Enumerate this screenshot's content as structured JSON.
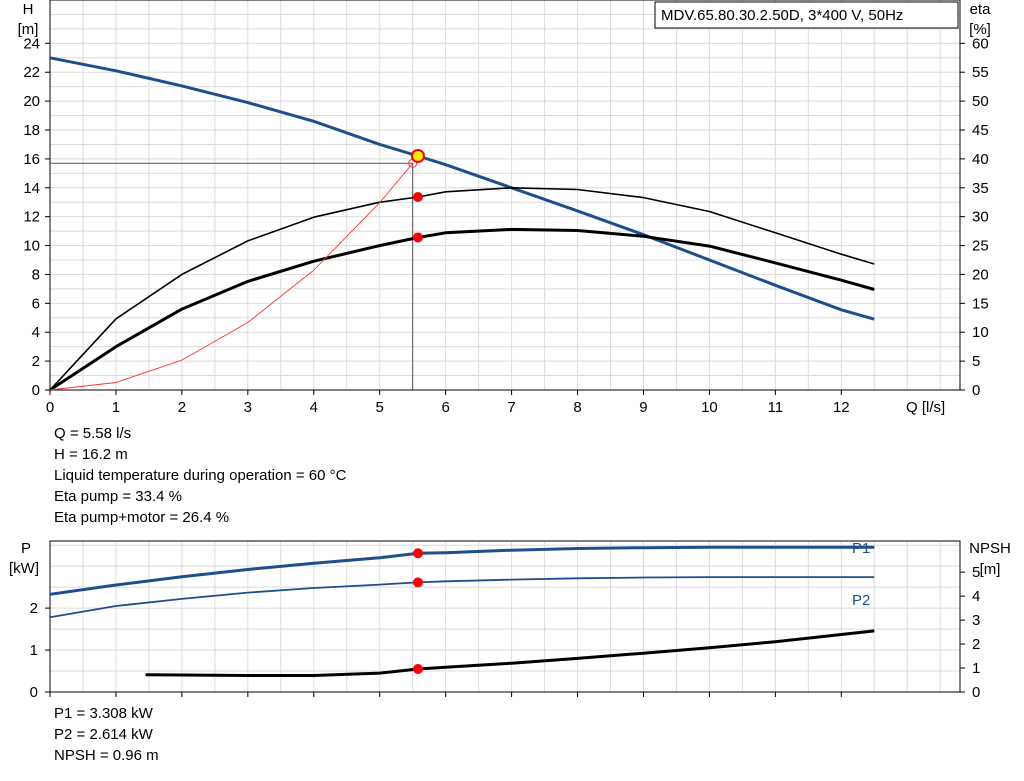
{
  "chart_data": [
    {
      "type": "line",
      "title": "MDV.65.80.30.2.50D, 3*400 V, 50Hz",
      "xlabel": "Q [l/s]",
      "ylabel_left": [
        "H",
        "[m]"
      ],
      "ylabel_right": [
        "eta",
        "[%]"
      ],
      "xlim": [
        0,
        13.8
      ],
      "ylim_left": [
        0,
        27
      ],
      "ylim_right": [
        0,
        67.5
      ],
      "x_ticks": [
        0,
        1,
        2,
        3,
        4,
        5,
        6,
        7,
        8,
        9,
        10,
        11,
        12
      ],
      "y_left_ticks": [
        0,
        2,
        4,
        6,
        8,
        10,
        12,
        14,
        16,
        18,
        20,
        22,
        24
      ],
      "y_right_ticks": [
        0,
        5,
        10,
        15,
        20,
        25,
        30,
        35,
        40,
        45,
        50,
        55,
        60
      ],
      "grid": true,
      "operating_point": {
        "q": 5.58,
        "h": 16.2,
        "eta_pump": 33.4,
        "eta_total": 26.4,
        "marker_q": 5.5,
        "marker_h": 15.7
      },
      "series": [
        {
          "role": "head",
          "axis": "left",
          "color": "#1f4e8c",
          "x": [
            0,
            1,
            2,
            3,
            4,
            5,
            5.58,
            6,
            7,
            8,
            9,
            10,
            11,
            12,
            12.5
          ],
          "y": [
            23.0,
            22.1,
            21.05,
            19.9,
            18.6,
            17.0,
            16.2,
            15.6,
            14.0,
            12.4,
            10.75,
            9.0,
            7.25,
            5.55,
            4.9
          ]
        },
        {
          "role": "eta-pump",
          "axis": "right",
          "color": "#000000",
          "x": [
            0,
            1,
            2,
            3,
            4,
            5,
            5.58,
            6,
            7,
            8,
            9,
            10,
            11,
            12,
            12.5
          ],
          "y": [
            0,
            12.3,
            20.0,
            25.8,
            29.9,
            32.5,
            33.4,
            34.3,
            35.0,
            34.7,
            33.3,
            30.9,
            27.2,
            23.5,
            21.8
          ]
        },
        {
          "role": "eta-total",
          "axis": "right",
          "color": "#000000",
          "x": [
            0,
            1,
            2,
            3,
            4,
            5,
            5.58,
            6,
            7,
            8,
            9,
            10,
            11,
            12,
            12.5
          ],
          "y": [
            0,
            7.5,
            14.0,
            18.8,
            22.3,
            25.0,
            26.4,
            27.2,
            27.8,
            27.6,
            26.6,
            24.9,
            22.0,
            19.0,
            17.4
          ]
        },
        {
          "role": "system",
          "axis": "left",
          "color": "#ff3333",
          "x": [
            0,
            1,
            2,
            3,
            4,
            5,
            5.5
          ],
          "y": [
            0,
            0.52,
            2.07,
            4.67,
            8.3,
            12.97,
            15.7
          ]
        }
      ]
    },
    {
      "type": "line",
      "ylabel_left": [
        "P",
        "[kW]"
      ],
      "ylabel_right": [
        "NPSH",
        "[m]"
      ],
      "xlim": [
        0,
        13.8
      ],
      "ylim_left": [
        0,
        3.6
      ],
      "ylim_right": [
        0,
        6.3
      ],
      "y_left_ticks": [
        0,
        1,
        2
      ],
      "y_right_ticks": [
        0,
        1,
        2,
        3,
        4,
        5
      ],
      "grid": true,
      "operating_point_q": 5.58,
      "series": [
        {
          "name": "P1",
          "axis": "left",
          "color": "#1f4e8c",
          "x": [
            0,
            1,
            2,
            3,
            4,
            5,
            5.58,
            6,
            7,
            8,
            9,
            10,
            11,
            12,
            12.5
          ],
          "y": [
            2.33,
            2.55,
            2.75,
            2.92,
            3.07,
            3.2,
            3.308,
            3.32,
            3.38,
            3.42,
            3.44,
            3.45,
            3.45,
            3.45,
            3.45
          ]
        },
        {
          "name": "P2",
          "axis": "left",
          "color": "#1f4e8c",
          "x": [
            0,
            1,
            2,
            3,
            4,
            5,
            5.58,
            6,
            7,
            8,
            9,
            10,
            11,
            12,
            12.5
          ],
          "y": [
            1.78,
            2.05,
            2.22,
            2.37,
            2.48,
            2.56,
            2.614,
            2.64,
            2.68,
            2.71,
            2.73,
            2.74,
            2.74,
            2.74,
            2.74
          ]
        },
        {
          "role": "npsh",
          "axis": "right",
          "color": "#000000",
          "x": [
            1.45,
            2,
            3,
            4,
            5,
            5.58,
            6,
            7,
            8,
            9,
            10,
            11,
            12,
            12.5
          ],
          "y": [
            0.72,
            0.71,
            0.69,
            0.69,
            0.79,
            0.96,
            1.03,
            1.2,
            1.4,
            1.62,
            1.85,
            2.1,
            2.4,
            2.55
          ]
        }
      ]
    }
  ],
  "info_top": [
    "Q = 5.58 l/s",
    "H = 16.2 m",
    "Liquid temperature during operation = 60 °C",
    "Eta pump = 33.4 %",
    "Eta pump+motor = 26.4 %"
  ],
  "info_bottom": [
    "P1 = 3.308 kW",
    "P2 = 2.614 kW",
    "NPSH = 0.96 m"
  ]
}
